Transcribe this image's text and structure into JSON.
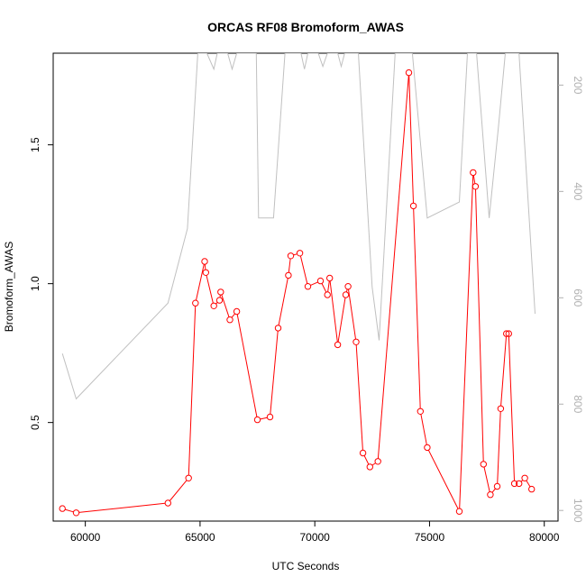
{
  "chart_data": {
    "type": "line",
    "title": "ORCAS RF08 Bromoform_AWAS",
    "xlabel": "UTC Seconds",
    "ylabel": "Bromoform_AWAS",
    "xlim": [
      58600,
      80600
    ],
    "ylim": [
      0.145,
      1.83
    ],
    "x_ticks": [
      60000,
      65000,
      70000,
      75000,
      80000
    ],
    "x_tick_labels": [
      "60000",
      "65000",
      "70000",
      "75000",
      "80000"
    ],
    "y_ticks": [
      0.5,
      1.0,
      1.5
    ],
    "y_tick_labels": [
      "0.5",
      "1.0",
      "1.5"
    ],
    "y2lim": [
      1020,
      140
    ],
    "y2_ticks": [
      200,
      400,
      600,
      800,
      1000
    ],
    "y2_tick_labels": [
      "200",
      "400",
      "600",
      "800",
      "1000"
    ],
    "series": [
      {
        "color": "#ff0000",
        "axis": "left",
        "markers": "open-circle",
        "points": [
          [
            59000,
            0.19
          ],
          [
            59600,
            0.175
          ],
          [
            63600,
            0.21
          ],
          [
            64500,
            0.3
          ],
          [
            64800,
            0.93
          ],
          [
            65200,
            1.08
          ],
          [
            65250,
            1.04
          ],
          [
            65600,
            0.92
          ],
          [
            65850,
            0.94
          ],
          [
            65900,
            0.97
          ],
          [
            66300,
            0.87
          ],
          [
            66600,
            0.9
          ],
          [
            67500,
            0.51
          ],
          [
            68050,
            0.52
          ],
          [
            68400,
            0.84
          ],
          [
            68850,
            1.03
          ],
          [
            68950,
            1.1
          ],
          [
            69350,
            1.11
          ],
          [
            69700,
            0.99
          ],
          [
            70250,
            1.01
          ],
          [
            70550,
            0.96
          ],
          [
            70650,
            1.02
          ],
          [
            71000,
            0.78
          ],
          [
            71350,
            0.96
          ],
          [
            71450,
            0.99
          ],
          [
            71800,
            0.79
          ],
          [
            72100,
            0.39
          ],
          [
            72400,
            0.34
          ],
          [
            72750,
            0.36
          ],
          [
            74100,
            1.76
          ],
          [
            74300,
            1.28
          ],
          [
            74600,
            0.54
          ],
          [
            74900,
            0.41
          ],
          [
            76300,
            0.18
          ],
          [
            76900,
            1.4
          ],
          [
            77000,
            1.35
          ],
          [
            77350,
            0.35
          ],
          [
            77650,
            0.24
          ],
          [
            77950,
            0.27
          ],
          [
            78100,
            0.55
          ],
          [
            78350,
            0.82
          ],
          [
            78450,
            0.82
          ],
          [
            78700,
            0.28
          ],
          [
            78900,
            0.28
          ],
          [
            79150,
            0.3
          ],
          [
            79450,
            0.26
          ]
        ]
      },
      {
        "color": "#c0c0c0",
        "axis": "right",
        "markers": "none",
        "points": [
          [
            59000,
            705
          ],
          [
            59600,
            790
          ],
          [
            63600,
            610
          ],
          [
            64450,
            470
          ],
          [
            64900,
            140
          ],
          [
            65300,
            140
          ],
          [
            65600,
            170
          ],
          [
            65750,
            140
          ],
          [
            66200,
            140
          ],
          [
            66400,
            170
          ],
          [
            66600,
            140
          ],
          [
            67450,
            140
          ],
          [
            67550,
            450
          ],
          [
            68200,
            450
          ],
          [
            68700,
            140
          ],
          [
            69400,
            140
          ],
          [
            69550,
            170
          ],
          [
            69700,
            140
          ],
          [
            70150,
            140
          ],
          [
            70350,
            165
          ],
          [
            70550,
            140
          ],
          [
            71000,
            140
          ],
          [
            71150,
            165
          ],
          [
            71300,
            140
          ],
          [
            71900,
            140
          ],
          [
            72500,
            580
          ],
          [
            72800,
            680
          ],
          [
            73500,
            140
          ],
          [
            74250,
            140
          ],
          [
            74900,
            450
          ],
          [
            76300,
            420
          ],
          [
            76650,
            140
          ],
          [
            77050,
            140
          ],
          [
            77600,
            450
          ],
          [
            78000,
            280
          ],
          [
            78300,
            140
          ],
          [
            78900,
            140
          ],
          [
            79600,
            630
          ]
        ]
      }
    ]
  }
}
